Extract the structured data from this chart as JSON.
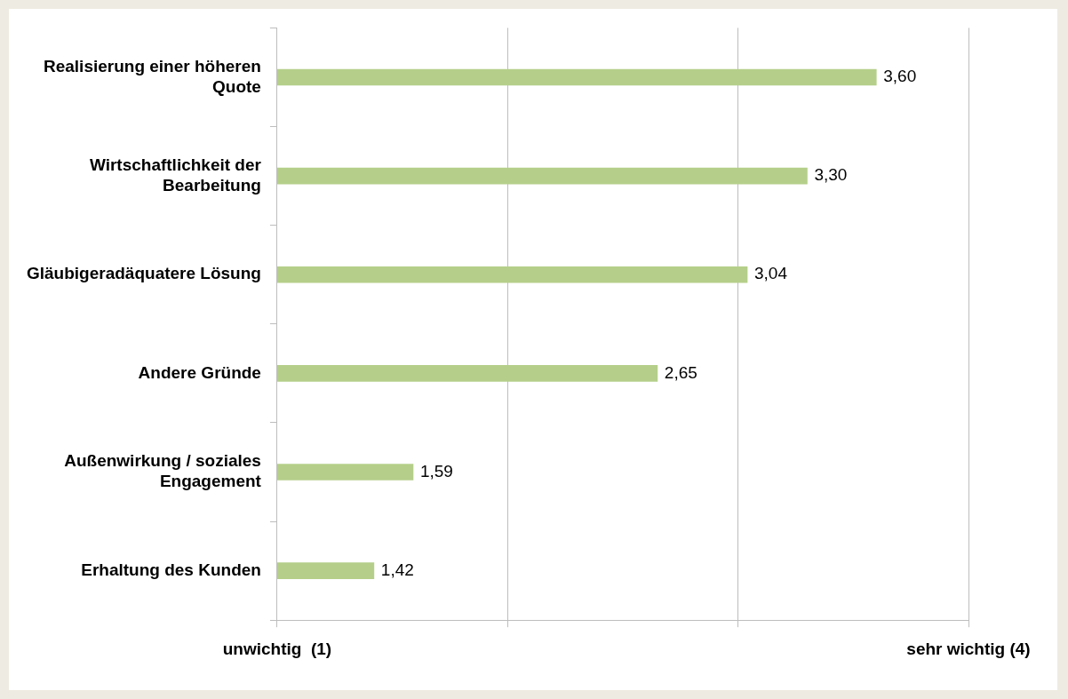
{
  "chart_data": {
    "type": "bar",
    "orientation": "horizontal",
    "categories": [
      "Realisierung einer höheren Quote",
      "Wirtschaftlichkeit der Bearbeitung",
      "Gläubigeradäquatere Lösung",
      "Andere Gründe",
      "Außenwirkung / soziales Engagement",
      "Erhaltung des Kunden"
    ],
    "values": [
      3.6,
      3.3,
      3.04,
      2.65,
      1.59,
      1.42
    ],
    "value_labels": [
      "3,60",
      "3,30",
      "3,04",
      "2,65",
      "1,59",
      "1,42"
    ],
    "color": "#b5cf8a",
    "xlim": [
      1,
      4
    ],
    "xticks": [
      {
        "value": 1,
        "label": "unwichtig  (1)"
      },
      {
        "value": 2,
        "label": null
      },
      {
        "value": 3,
        "label": null
      },
      {
        "value": 4,
        "label": "sehr wichtig (4)"
      }
    ],
    "grid": "x",
    "legend": false
  }
}
